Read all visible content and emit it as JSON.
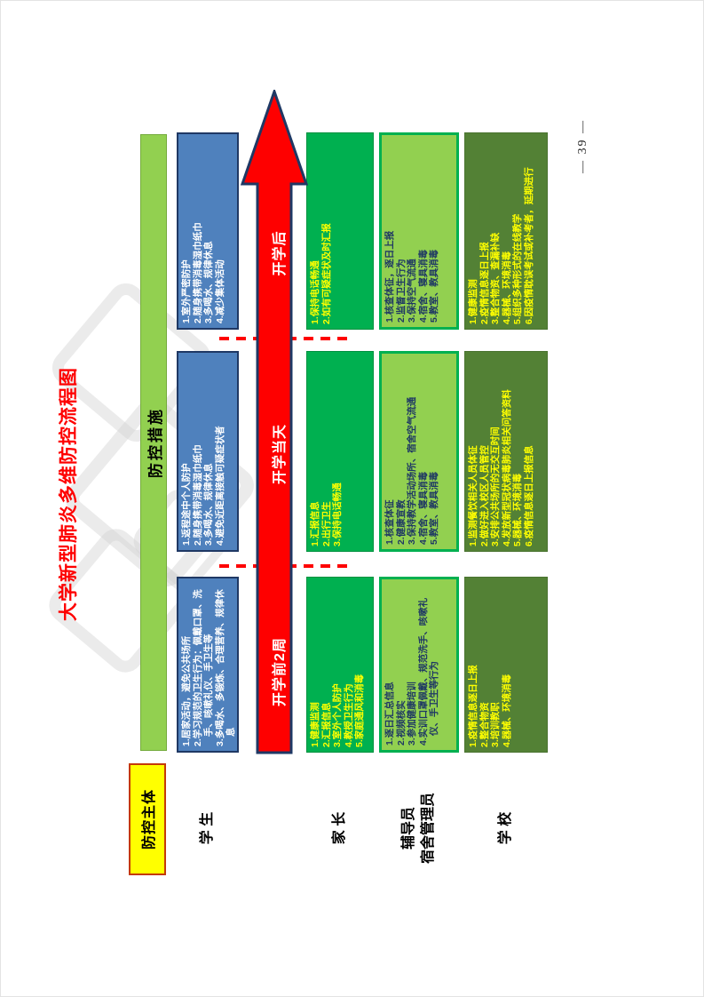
{
  "page": {
    "title": "大学新型肺炎多维防控流程图",
    "number": "— 39 —"
  },
  "header": {
    "subject_label": "防控主体",
    "measures_label": "防控措施"
  },
  "timeline": {
    "phases": [
      "开学前2周",
      "开学当天",
      "开学后"
    ]
  },
  "rows": [
    {
      "label_lines": [
        "学 生"
      ],
      "cells": [
        {
          "lines": [
            "1.居家活动，避免公共场所",
            "2.学习规范的卫生行为：佩戴口罩、洗手、咳嗽礼仪、手卫生等",
            "3.多喝水、多锻炼、合理营养、规律休息"
          ]
        },
        {
          "lines": [
            "1.返程途中个人防护",
            "2.随身携带消毒湿巾纸巾",
            "3.多喝水、规律休息",
            "4.避免近距离接触可疑症状者"
          ]
        },
        {
          "lines": [
            "1.室外严密防护",
            "2.随身携带消毒湿巾纸巾",
            "3.多喝水、规律休息",
            "4.减少集体活动"
          ]
        }
      ]
    },
    {
      "label_lines": [
        "家 长"
      ],
      "cells": [
        {
          "lines": [
            "1.健康监测",
            "2.汇报信息",
            "3.室外个人防护",
            "4.教授卫生行为",
            "5.家庭通风和消毒"
          ]
        },
        {
          "lines": [
            "1.汇报信息",
            "2.出行卫生",
            "3.保持电话畅通"
          ]
        },
        {
          "lines": [
            "1.保持电话畅通",
            "2.如有可疑症状及时汇报"
          ]
        }
      ]
    },
    {
      "label_lines": [
        "辅导员",
        "宿舍管理员"
      ],
      "cells": [
        {
          "lines": [
            "1.逐日汇总信息",
            "2.视频核实",
            "3.参加健康培训",
            "4.实训口罩佩戴、规范洗手、咳嗽礼仪、手卫生等行为"
          ]
        },
        {
          "lines": [
            "1.核查体征",
            "2.健康宣教",
            "3.保持教学活动场所、宿舍空气流通",
            "4.宿舍、寝具消毒",
            "5.教室、教具消毒"
          ]
        },
        {
          "lines": [
            "1.核查体征，逐日上报",
            "2.监督卫生行为",
            "3.保持空气流通",
            "4.宿舍、寝具消毒",
            "5.教室、教具消毒"
          ]
        }
      ]
    },
    {
      "label_lines": [
        "学 校"
      ],
      "cells": [
        {
          "lines": [
            "1.疫情信息逐日上报",
            "2.整合物资",
            "3.培训教职",
            "4.器械、环境消毒"
          ]
        },
        {
          "lines": [
            "1.监测餐饮相关人员体征",
            "2.做好进入校区人员管控",
            "3.安排公共场所的无交互时间",
            "4.发放新型冠状病毒肺炎相关问答资料",
            "5.器械、环境消毒",
            "6.疫情信息逐日上报信息"
          ]
        },
        {
          "lines": [
            "1.健康监测",
            "2.疫情信息逐日上报",
            "3.整合物资、查漏补缺",
            "4.器械、环境消毒",
            "5.组织多种形式的在线教学",
            "6.因疫情耽误考试或补考者，延期进行"
          ]
        }
      ]
    }
  ]
}
